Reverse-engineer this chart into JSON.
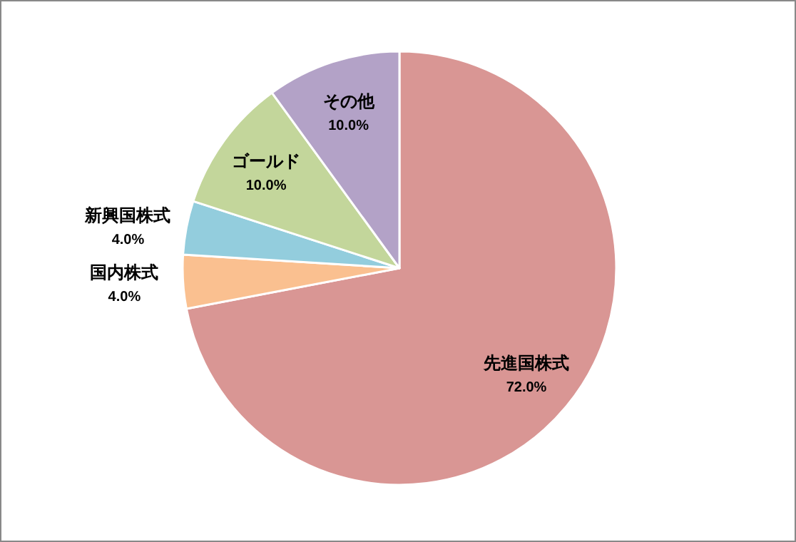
{
  "chart_data": {
    "type": "pie",
    "categories": [
      "先進国株式",
      "国内株式",
      "新興国株式",
      "ゴールド",
      "その他"
    ],
    "values": [
      72,
      4,
      4,
      10,
      10
    ],
    "value_labels": [
      "72.0%",
      "4.0%",
      "4.0%",
      "10.0%",
      "10.0%"
    ],
    "colors": [
      "#d99694",
      "#fac090",
      "#93cddd",
      "#c3d69b",
      "#b3a2c7"
    ],
    "legend": false
  }
}
